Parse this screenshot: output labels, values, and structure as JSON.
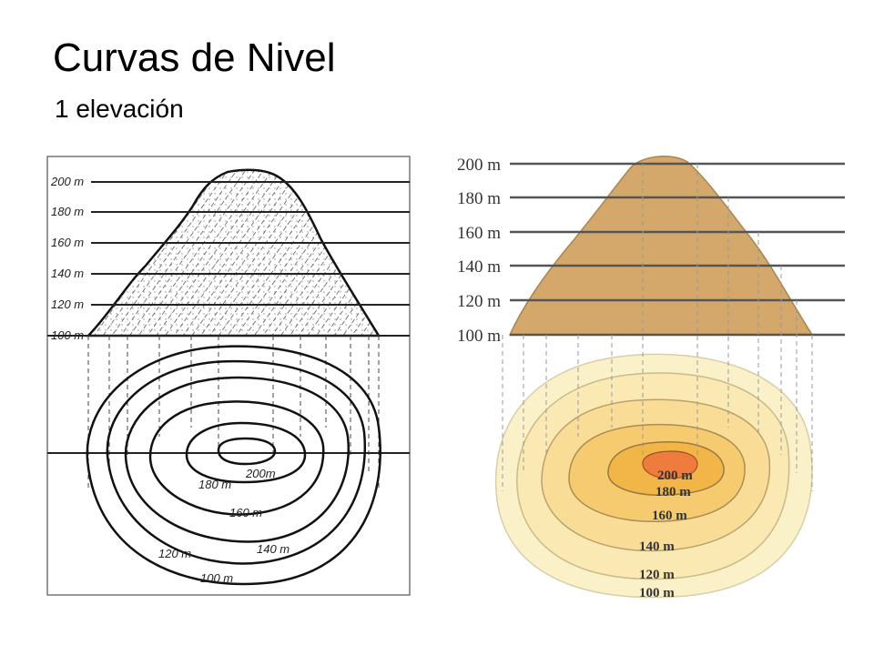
{
  "slide": {
    "title": "Curvas de Nivel",
    "subtitle": "1 elevación"
  },
  "left_diagram": {
    "elevation_labels": [
      "200 m",
      "180 m",
      "160 m",
      "140 m",
      "120 m",
      "100 m"
    ],
    "contour_labels": [
      "200m",
      "180 m",
      "160 m",
      "140 m",
      "120 m",
      "100 m"
    ]
  },
  "right_diagram": {
    "elevation_labels": [
      "200 m",
      "180 m",
      "160 m",
      "140 m",
      "120 m",
      "100 m"
    ],
    "contour_labels": [
      "200 m",
      "180 m",
      "160 m",
      "140 m",
      "120 m",
      "100 m"
    ],
    "colors": {
      "mountain": "#d4a76a",
      "ring_100": "#fbf1c9",
      "ring_120": "#fae9b3",
      "ring_140": "#f9dc96",
      "ring_160": "#f6cb70",
      "ring_180": "#f2b547",
      "ring_200": "#ee7d3d"
    }
  }
}
